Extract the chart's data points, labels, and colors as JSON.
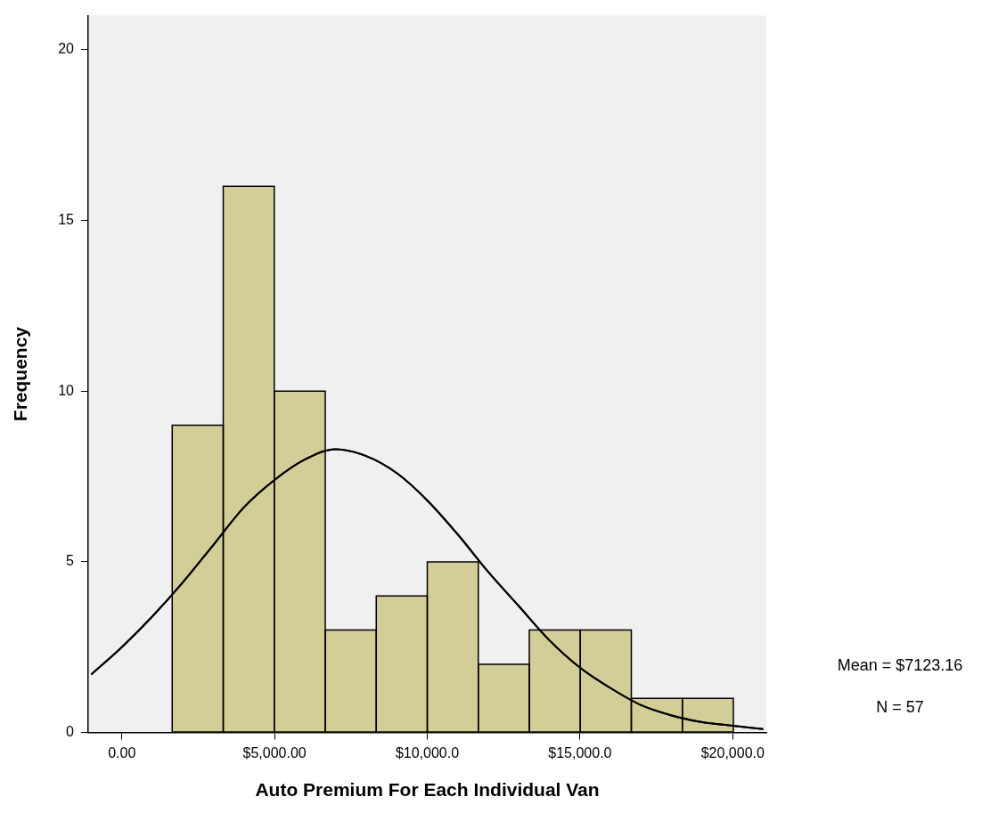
{
  "chart_data": {
    "type": "histogram",
    "xlabel": "Auto Premium For Each Individual Van",
    "ylabel": "Frequency",
    "bins": [
      1650,
      3320,
      4990,
      6660,
      8330,
      10000,
      11670,
      13340,
      15010,
      16680,
      18350,
      20020
    ],
    "values": [
      9,
      16,
      10,
      3,
      4,
      5,
      2,
      3,
      3,
      1,
      1
    ],
    "color": "#d3ce97",
    "series": [
      {
        "type": "line",
        "color": "#000000",
        "x": [
          -1000,
          0,
          1000,
          2000,
          3000,
          4000,
          5000,
          6000,
          7000,
          8000,
          9000,
          10000,
          11000,
          12000,
          13000,
          14000,
          15000,
          16000,
          17000,
          18000,
          19000,
          20000,
          21000
        ],
        "values": [
          1.7,
          2.5,
          3.4,
          4.4,
          5.5,
          6.6,
          7.4,
          8.0,
          8.3,
          8.1,
          7.6,
          6.8,
          5.8,
          4.7,
          3.7,
          2.7,
          1.9,
          1.3,
          0.8,
          0.5,
          0.3,
          0.2,
          0.1
        ]
      }
    ],
    "xlim": [
      -1100,
      21100
    ],
    "xticks": [
      {
        "value": 0,
        "label": "0.00"
      },
      {
        "value": 5000,
        "label": "$5,000.00"
      },
      {
        "value": 10000,
        "label": "$10,000.0"
      },
      {
        "value": 15000,
        "label": "$15,000.0"
      },
      {
        "value": 20000,
        "label": "$20,000.0"
      }
    ],
    "ylim": [
      0,
      21
    ],
    "yticks": [
      0,
      5,
      10,
      15,
      20
    ],
    "legend": false,
    "annotations": [
      "Mean = $7123.16",
      "N = 57"
    ]
  }
}
